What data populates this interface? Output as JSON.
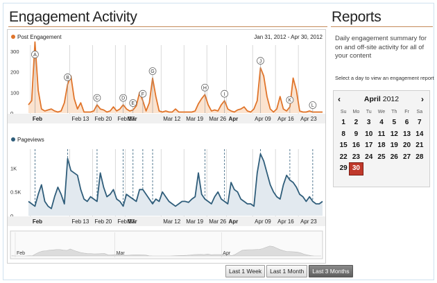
{
  "engagement": {
    "title": "Engagement Activity",
    "date_range": "Jan 31, 2012 - Apr 30, 2012",
    "post_engagement_label": "Post Engagement",
    "pageviews_label": "Pageviews",
    "post_color": "#e0742a",
    "pageviews_color": "#2f5d7a",
    "post_y_ticks": [
      "300",
      "200",
      "100",
      "0"
    ],
    "pageviews_y_ticks": [
      "1K",
      "0.5K",
      "0"
    ],
    "x_labels": [
      "Feb",
      "Feb 13",
      "Feb 20",
      "Feb 27",
      "Mar",
      "Mar 12",
      "Mar 19",
      "Mar 26",
      "Apr",
      "Apr 09",
      "Apr 16",
      "Apr 23"
    ],
    "x_labels_bold": [
      true,
      false,
      false,
      false,
      true,
      false,
      false,
      false,
      true,
      false,
      false,
      false
    ],
    "annotations": [
      "A",
      "B",
      "C",
      "D",
      "E",
      "F",
      "G",
      "H",
      "I",
      "J",
      "K",
      "L"
    ],
    "navigator_labels": [
      "Feb",
      "Mar",
      "Apr"
    ],
    "range_buttons": [
      "Last 1 Week",
      "Last 1 Month",
      "Last 3 Months"
    ],
    "active_range": "Last 3 Months"
  },
  "chart_data": [
    {
      "type": "area",
      "title": "Post Engagement",
      "ylim": [
        0,
        330
      ],
      "x": "daily, Jan 31 2012 - Apr 30 2012 (91 days)",
      "series": [
        {
          "name": "Post Engagement",
          "values": [
            40,
            60,
            345,
            110,
            20,
            10,
            15,
            20,
            10,
            5,
            10,
            50,
            140,
            180,
            70,
            20,
            50,
            5,
            5,
            5,
            10,
            40,
            20,
            15,
            5,
            10,
            30,
            10,
            20,
            40,
            20,
            10,
            15,
            35,
            100,
            60,
            10,
            50,
            170,
            80,
            10,
            5,
            10,
            5,
            5,
            20,
            5,
            5,
            5,
            5,
            5,
            10,
            45,
            70,
            90,
            40,
            10,
            15,
            10,
            40,
            60,
            20,
            10,
            5,
            15,
            20,
            30,
            10,
            5,
            20,
            60,
            220,
            180,
            80,
            20,
            5,
            20,
            80,
            20,
            10,
            30,
            170,
            110,
            10,
            5,
            5,
            10,
            5,
            5,
            5,
            5
          ]
        }
      ],
      "annotations": [
        {
          "label": "A",
          "day": 2
        },
        {
          "label": "B",
          "day": 12
        },
        {
          "label": "C",
          "day": 21
        },
        {
          "label": "D",
          "day": 29
        },
        {
          "label": "E",
          "day": 32
        },
        {
          "label": "F",
          "day": 35
        },
        {
          "label": "G",
          "day": 38
        },
        {
          "label": "H",
          "day": 54
        },
        {
          "label": "I",
          "day": 60
        },
        {
          "label": "J",
          "day": 71
        },
        {
          "label": "K",
          "day": 80
        },
        {
          "label": "L",
          "day": 87
        }
      ]
    },
    {
      "type": "area",
      "title": "Pageviews",
      "ylim": [
        0,
        1400
      ],
      "x": "daily, Jan 31 2012 - Apr 30 2012 (91 days)",
      "series": [
        {
          "name": "Pageviews",
          "values": [
            300,
            250,
            200,
            450,
            650,
            300,
            200,
            150,
            400,
            600,
            450,
            250,
            1200,
            950,
            900,
            850,
            550,
            350,
            300,
            400,
            350,
            300,
            900,
            600,
            400,
            450,
            550,
            350,
            300,
            200,
            450,
            400,
            350,
            300,
            550,
            550,
            450,
            350,
            250,
            350,
            300,
            500,
            400,
            300,
            250,
            200,
            250,
            300,
            300,
            280,
            350,
            400,
            900,
            450,
            350,
            300,
            250,
            400,
            500,
            350,
            300,
            250,
            700,
            550,
            500,
            350,
            300,
            250,
            250,
            200,
            900,
            1300,
            1150,
            900,
            650,
            500,
            400,
            350,
            650,
            850,
            750,
            700,
            600,
            450,
            400,
            300,
            400,
            300,
            250,
            250,
            300
          ]
        }
      ]
    }
  ],
  "reports": {
    "title": "Reports",
    "description": "Daily engagement summary for on and off-site activity for all of your content",
    "hint": "Select a day to view an engagement report",
    "calendar": {
      "month": "April",
      "year": "2012",
      "prev_icon": "chevron-left-icon",
      "next_icon": "chevron-right-icon",
      "days_of_week": [
        "Su",
        "Mo",
        "Tu",
        "We",
        "Th",
        "Fr",
        "Sa"
      ],
      "weeks": [
        [
          "1",
          "2",
          "3",
          "4",
          "5",
          "6",
          "7"
        ],
        [
          "8",
          "9",
          "10",
          "11",
          "12",
          "13",
          "14"
        ],
        [
          "15",
          "16",
          "17",
          "18",
          "19",
          "20",
          "21"
        ],
        [
          "22",
          "23",
          "24",
          "25",
          "26",
          "27",
          "28"
        ],
        [
          "29",
          "30",
          "",
          "",
          "",
          "",
          ""
        ]
      ],
      "selected_day": "30",
      "selected_color": "#c0392b"
    }
  }
}
